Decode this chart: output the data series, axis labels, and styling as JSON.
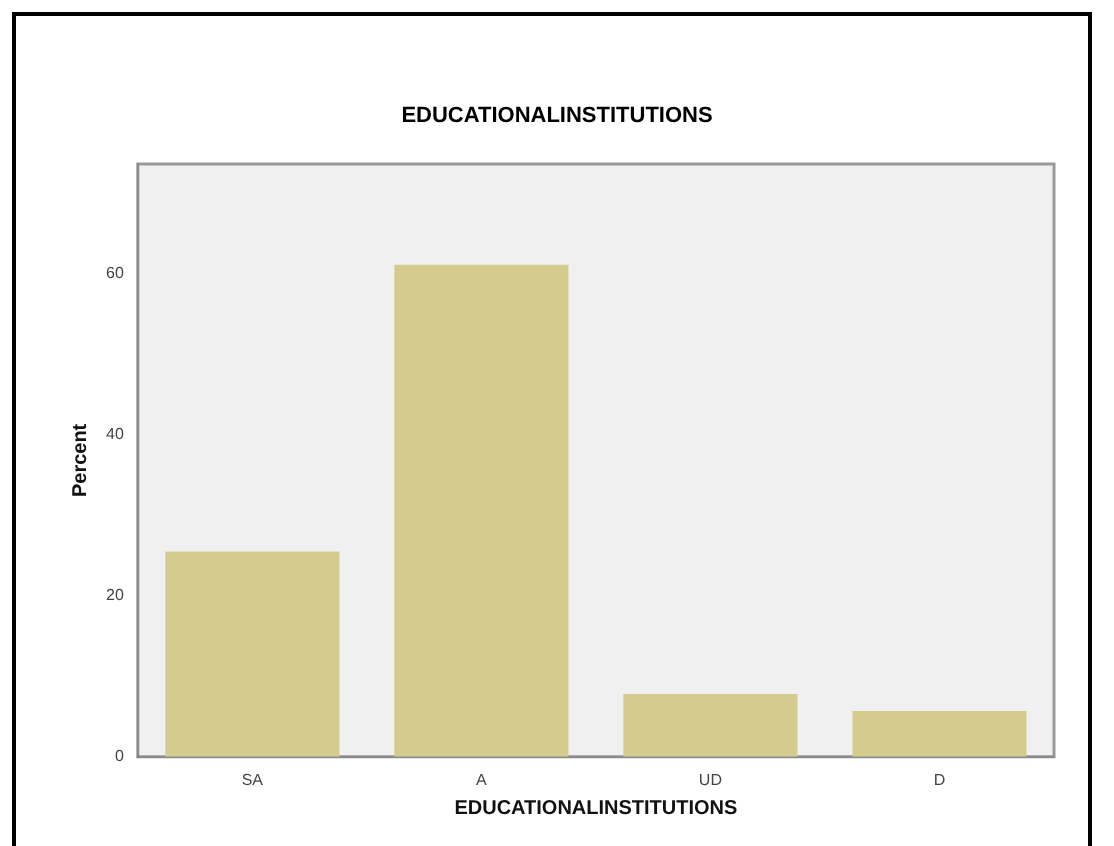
{
  "chart_data": {
    "type": "bar",
    "title": "EDUCATIONALINSTITUTIONS",
    "xlabel": "EDUCATIONALINSTITUTIONS",
    "ylabel": "Percent",
    "categories": [
      "SA",
      "A",
      "UD",
      "D"
    ],
    "values": [
      25.5,
      61.1,
      7.8,
      5.7
    ],
    "color": "#d4cc8e",
    "ylim": [
      0,
      73.6
    ],
    "yticks": [
      0,
      20,
      40,
      60
    ],
    "grid": false,
    "legend": false
  }
}
